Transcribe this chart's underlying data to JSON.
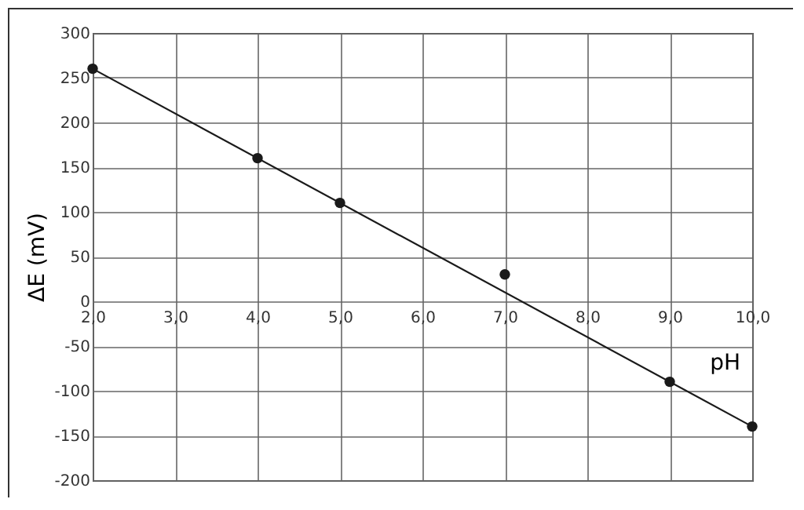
{
  "chart_data": {
    "type": "scatter",
    "xlabel": "pH",
    "ylabel": "ΔE (mV)",
    "x": [
      2,
      4,
      5,
      7,
      9,
      10
    ],
    "series": [
      {
        "color": "#1a1a1a",
        "marker": "circle",
        "values": [
          260,
          160,
          110,
          30,
          -90,
          -140
        ]
      },
      {
        "type": "line",
        "color": "#1a1a1a",
        "x": [
          2,
          10
        ],
        "values": [
          260,
          -140
        ]
      }
    ],
    "xlim": [
      2,
      10
    ],
    "ylim": [
      -200,
      300
    ],
    "xticks": [
      {
        "value": 2,
        "label": "2,0"
      },
      {
        "value": 3,
        "label": "3,0"
      },
      {
        "value": 4,
        "label": "4,0"
      },
      {
        "value": 5,
        "label": "5,0"
      },
      {
        "value": 6,
        "label": "6,0"
      },
      {
        "value": 7,
        "label": "7,0"
      },
      {
        "value": 8,
        "label": "8,0"
      },
      {
        "value": 9,
        "label": "9,0"
      },
      {
        "value": 10,
        "label": "10,0"
      }
    ],
    "yticks": [
      -200,
      -150,
      -100,
      -50,
      0,
      50,
      100,
      150,
      200,
      250,
      300
    ],
    "grid": true,
    "line_style": "solid"
  }
}
